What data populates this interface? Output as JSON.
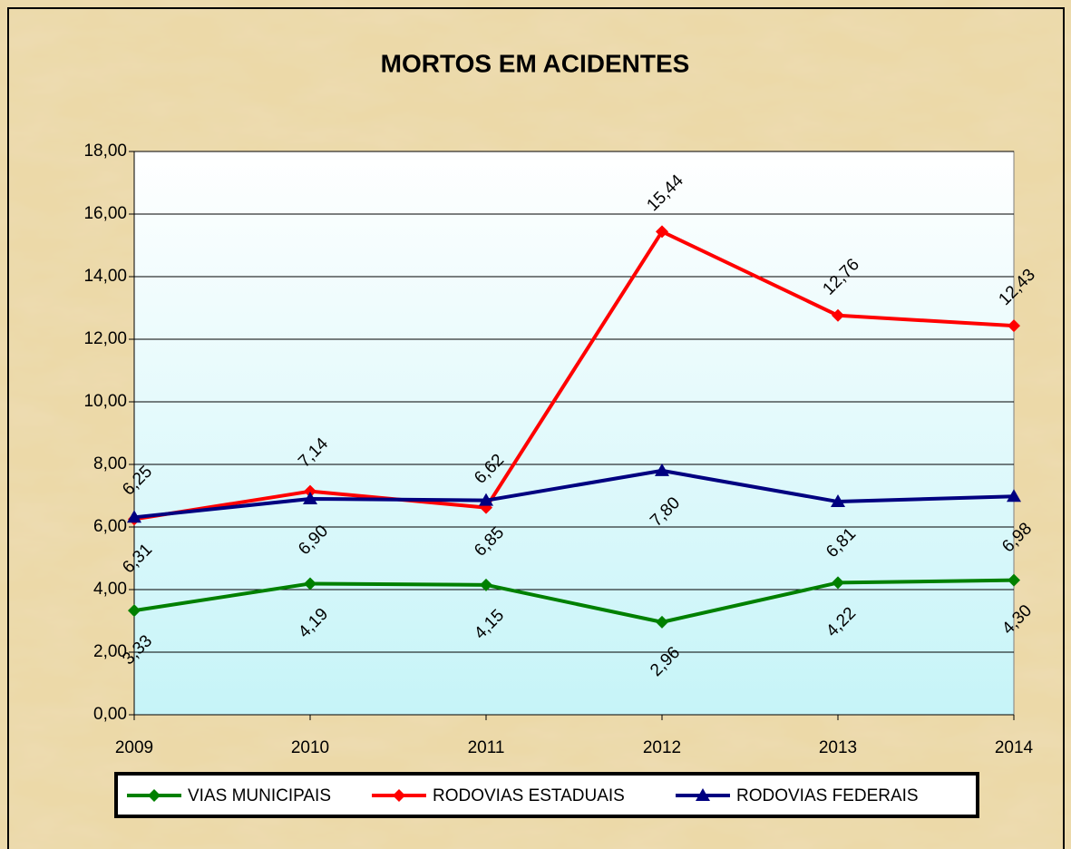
{
  "chart_data": {
    "type": "line",
    "title": "MORTOS EM ACIDENTES",
    "categories": [
      "2009",
      "2010",
      "2011",
      "2012",
      "2013",
      "2014"
    ],
    "series": [
      {
        "name": "VIAS MUNICIPAIS",
        "color": "#008000",
        "marker": "diamond",
        "values": [
          3.33,
          4.19,
          4.15,
          2.96,
          4.22,
          4.3
        ],
        "value_labels": [
          "3,33",
          "4,19",
          "4,15",
          "2,96",
          "4,22",
          "4,30"
        ]
      },
      {
        "name": "RODOVIAS ESTADUAIS",
        "color": "#ff0000",
        "marker": "diamond",
        "values": [
          6.25,
          7.14,
          6.62,
          15.44,
          12.76,
          12.43
        ],
        "value_labels": [
          "6,25",
          "7,14",
          "6,62",
          "15,44",
          "12,76",
          "12,43"
        ]
      },
      {
        "name": "RODOVIAS FEDERAIS",
        "color": "#000080",
        "marker": "triangle",
        "values": [
          6.31,
          6.9,
          6.85,
          7.8,
          6.81,
          6.98
        ],
        "value_labels": [
          "6,31",
          "6,90",
          "6,85",
          "7,80",
          "6,81",
          "6,98"
        ]
      }
    ],
    "ylim": [
      0,
      18
    ],
    "yticks": [
      {
        "value": 0,
        "label": "0,00"
      },
      {
        "value": 2,
        "label": "2,00"
      },
      {
        "value": 4,
        "label": "4,00"
      },
      {
        "value": 6,
        "label": "6,00"
      },
      {
        "value": 8,
        "label": "8,00"
      },
      {
        "value": 10,
        "label": "10,00"
      },
      {
        "value": 12,
        "label": "12,00"
      },
      {
        "value": 14,
        "label": "14,00"
      },
      {
        "value": 16,
        "label": "16,00"
      },
      {
        "value": 18,
        "label": "18,00"
      }
    ],
    "grid": true,
    "legend": "bottom"
  }
}
